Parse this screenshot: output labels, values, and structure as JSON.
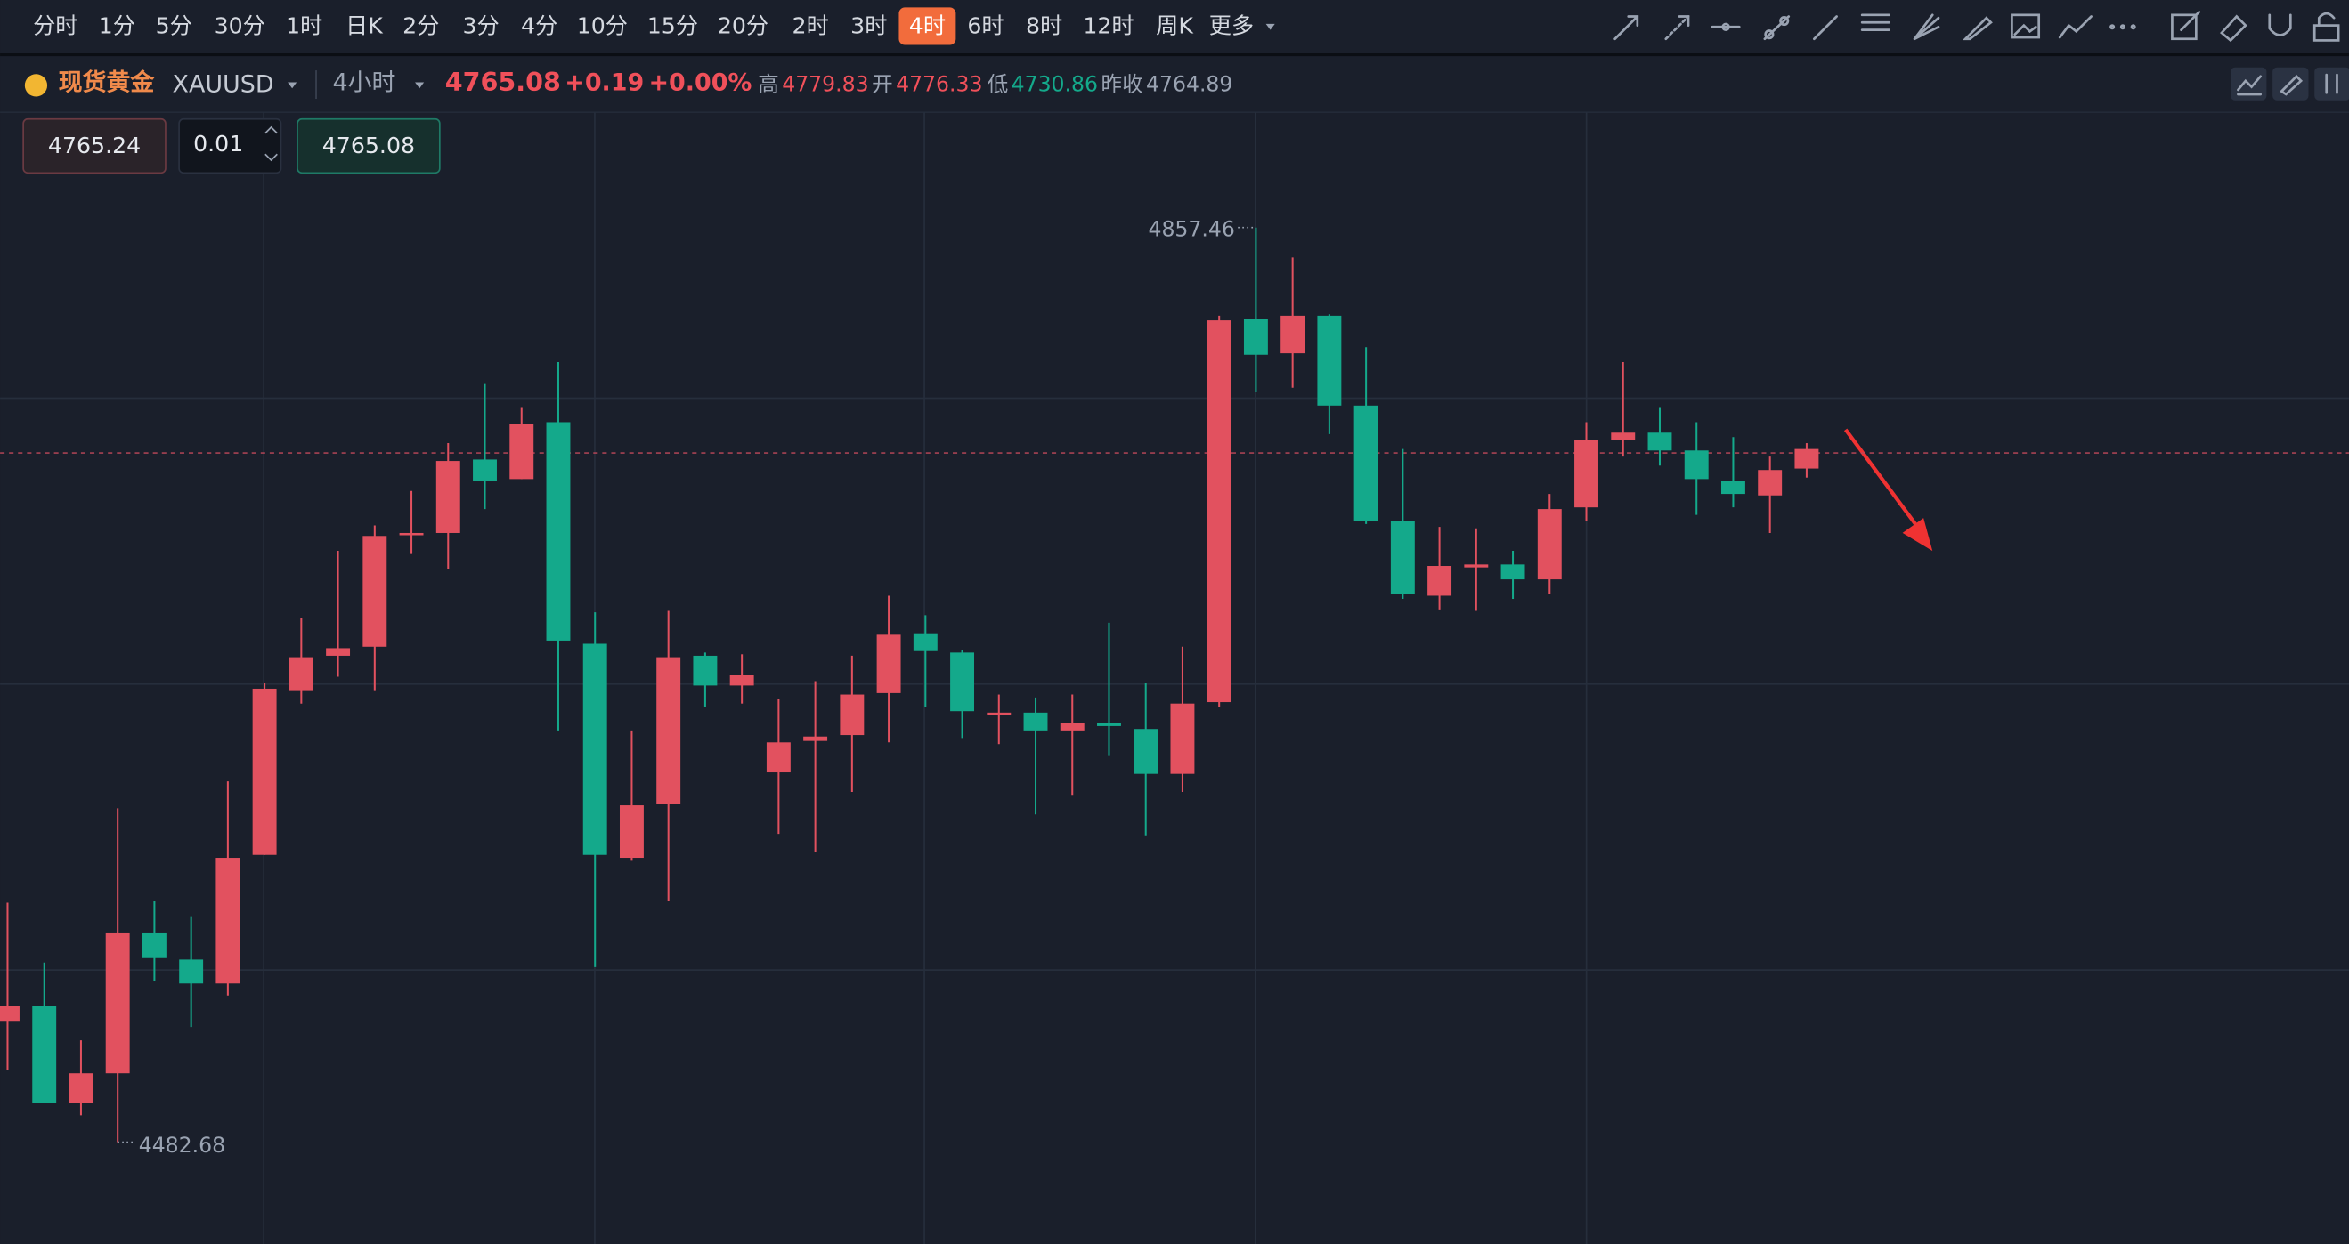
{
  "toolbar": {
    "timeframes": [
      "分时",
      "1分",
      "5分",
      "30分",
      "1时",
      "日K",
      "2分",
      "3分",
      "4分",
      "10分",
      "15分",
      "20分",
      "2时",
      "3时",
      "4时",
      "6时",
      "8时",
      "12时",
      "周K",
      "更多"
    ]
  },
  "quote": {
    "name": "现货黄金",
    "symbol": "XAUUSD",
    "period": "4小时",
    "price": 4765.08,
    "change": "+0.19",
    "change_pct": "+0.00%",
    "high_label": "高",
    "high": 4779.83,
    "open_label": "开",
    "open": 4776.33,
    "low_label": "低",
    "low": 4730.86,
    "prev_label": "昨收",
    "prev_close": 4764.89
  },
  "order": {
    "sell": 4765.24,
    "lots": 0.01,
    "buy": 4765.08
  },
  "chart_data": {
    "type": "candlestick",
    "up_color": "#e2515f",
    "down_color": "#14a98b",
    "ylim": [
      4440.97,
      4904.69
    ],
    "open": [
      4532.4,
      4538.5,
      4498.6,
      4510.9,
      4568.6,
      4557.5,
      4547.7,
      4600.4,
      4667.9,
      4682.0,
      4685.7,
      4731.7,
      4732.3,
      4762.4,
      4754.4,
      4777.7,
      4686.9,
      4599.2,
      4621.3,
      4682.0,
      4669.8,
      4634.2,
      4647.1,
      4649.5,
      4666.7,
      4691.2,
      4683.3,
      4658.1,
      4658.7,
      4651.4,
      4654.4,
      4652.0,
      4633.6,
      4663.0,
      4820.0,
      4805.9,
      4821.3,
      4784.5,
      4737.2,
      4706.6,
      4718.2,
      4719.4,
      4713.3,
      4742.8,
      4770.4,
      4773.4,
      4766.1,
      4753.8,
      4747.7,
      4758.7
    ],
    "high": [
      4580.8,
      4556.3,
      4524.4,
      4619.5,
      4581.4,
      4575.3,
      4630.5,
      4671.0,
      4697.4,
      4725.0,
      4735.4,
      4749.5,
      4769.1,
      4793.7,
      4783.9,
      4802.3,
      4699.8,
      4651.4,
      4700.4,
      4683.3,
      4682.6,
      4664.2,
      4671.6,
      4682.0,
      4706.6,
      4698.6,
      4684.5,
      4666.1,
      4664.9,
      4666.1,
      4695.5,
      4671.0,
      4685.7,
      4821.3,
      4857.46,
      4845.2,
      4821.9,
      4808.4,
      4766.7,
      4734.8,
      4734.2,
      4725.0,
      4748.3,
      4777.7,
      4802.3,
      4783.9,
      4777.7,
      4771.6,
      4763.6,
      4769.1
    ],
    "low": [
      4512.1,
      4498.6,
      4493.7,
      4482.68,
      4548.9,
      4529.9,
      4542.8,
      4600.4,
      4662.4,
      4673.4,
      4667.9,
      4723.7,
      4717.6,
      4742.1,
      4754.4,
      4651.4,
      4554.4,
      4598.0,
      4581.4,
      4661.2,
      4662.4,
      4609.0,
      4601.7,
      4626.2,
      4646.5,
      4661.2,
      4648.3,
      4645.8,
      4617.0,
      4625.0,
      4640.9,
      4608.4,
      4626.2,
      4661.2,
      4790.0,
      4791.8,
      4772.8,
      4736.0,
      4705.3,
      4701.0,
      4700.4,
      4705.3,
      4707.2,
      4737.2,
      4763.6,
      4759.9,
      4739.7,
      4742.8,
      4732.3,
      4755.0
    ],
    "close": [
      4538.5,
      4498.6,
      4510.9,
      4568.6,
      4558.1,
      4547.7,
      4599.2,
      4668.5,
      4681.4,
      4685.1,
      4731.1,
      4732.3,
      4761.8,
      4753.8,
      4777.1,
      4688.2,
      4600.4,
      4620.7,
      4681.4,
      4669.8,
      4674.1,
      4646.5,
      4648.9,
      4666.1,
      4690.6,
      4683.9,
      4659.3,
      4658.7,
      4651.4,
      4654.4,
      4653.2,
      4633.6,
      4662.4,
      4819.4,
      4805.3,
      4821.3,
      4784.5,
      4737.2,
      4707.2,
      4718.8,
      4719.4,
      4713.3,
      4742.1,
      4770.4,
      4773.4,
      4766.1,
      4754.4,
      4748.3,
      4758.1,
      4766.7
    ]
  }
}
